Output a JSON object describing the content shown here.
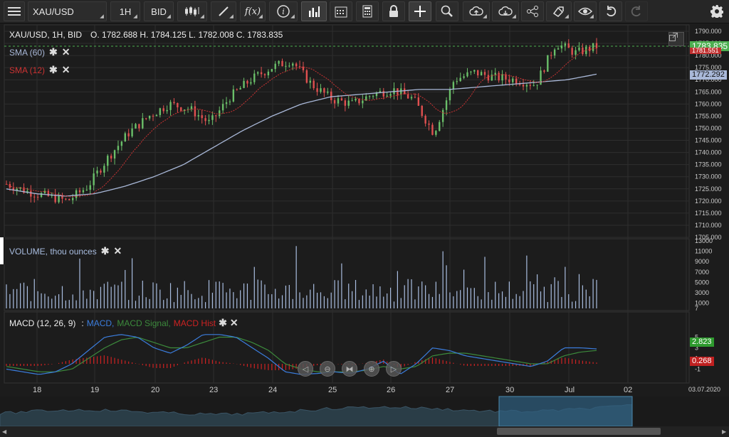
{
  "toolbar": {
    "symbol": "XAU/USD",
    "timeframe": "1H",
    "price_type": "BID",
    "buttons": [
      "menu-icon",
      "candles-icon",
      "draw-icon",
      "function-icon",
      "info-icon",
      "volume-bars-icon",
      "calendar-icon",
      "calculator-icon",
      "lock-icon",
      "crosshair-icon",
      "zoom-icon",
      "cloud-upload-icon",
      "cloud-download-icon",
      "share-icon",
      "template-icon",
      "eye-icon",
      "undo-icon",
      "redo-icon",
      "settings-icon"
    ]
  },
  "header": {
    "title": "XAU/USD, 1H, BID",
    "ohlc": "O. 1782.688 H. 1784.125 L. 1782.008 C. 1783.835"
  },
  "indicators": {
    "sma60": "SMA (60)",
    "sma12": "SMA (12)",
    "volume": "VOLUME, thou ounces",
    "macd_title": "MACD (12, 26, 9)",
    "macd_sep": ":",
    "macd_line": "MACD,",
    "macd_signal": "MACD Signal,",
    "macd_hist": "MACD Hist"
  },
  "price_axis": {
    "labels": [
      "1790.000",
      "1785.000",
      "1780.000",
      "1775.000",
      "1770.000",
      "1765.000",
      "1760.000",
      "1755.000",
      "1750.000",
      "1745.000",
      "1740.000",
      "1735.000",
      "1730.000",
      "1725.000",
      "1720.000",
      "1715.000",
      "1710.000",
      "1705.000"
    ],
    "last_price": "1783.835",
    "sma12_value": "1781.551",
    "sma60_value": "1772.292"
  },
  "volume_axis": {
    "labels": [
      "13000",
      "11000",
      "9000",
      "7000",
      "5000",
      "3000",
      "1000",
      "7"
    ]
  },
  "macd_axis": {
    "labels": [
      "5",
      "3",
      "1",
      "-1"
    ],
    "macd_value": "2.823",
    "hist_value": "0.268"
  },
  "time_axis": {
    "labels": [
      "18",
      "19",
      "20",
      "23",
      "24",
      "25",
      "26",
      "27",
      "30",
      "Jul",
      "02"
    ],
    "date": "03.07.2020"
  },
  "colors": {
    "bull": "#6abf69",
    "bear": "#e05050",
    "sma60": "#a9b8d8",
    "sma12": "#cc3333",
    "volume": "#a9bde0",
    "macd": "#3b7ddd",
    "signal": "#3c8a3c",
    "hist": "#cc2222",
    "price_tag": "#4caf50"
  },
  "chart_data": {
    "type": "candlestick",
    "instrument": "XAU/USD",
    "timeframe": "1H",
    "days": [
      "18",
      "19",
      "20",
      "23",
      "24",
      "25",
      "26",
      "27",
      "30",
      "Jul"
    ],
    "closes_approx": [
      1727,
      1724,
      1722,
      1720,
      1726,
      1738,
      1748,
      1755,
      1760,
      1758,
      1752,
      1763,
      1770,
      1775,
      1778,
      1768,
      1762,
      1760,
      1764,
      1766,
      1762,
      1748,
      1770,
      1773,
      1771,
      1770,
      1768,
      1785,
      1781,
      1783.835
    ],
    "sma60_approx": [
      1725,
      1723,
      1722,
      1723,
      1726,
      1730,
      1735,
      1742,
      1749,
      1755,
      1760,
      1763,
      1764,
      1765,
      1766,
      1766,
      1767,
      1768,
      1769,
      1770,
      1772.292
    ],
    "ylim": [
      1705,
      1790
    ]
  }
}
